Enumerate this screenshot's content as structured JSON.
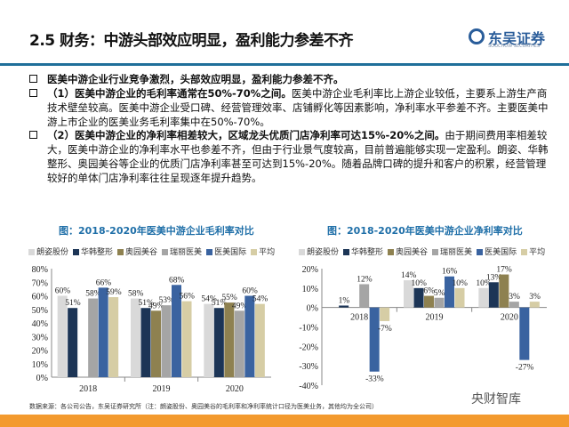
{
  "header": {
    "title": "2.5 财务：中游头部效应明显，盈利能力参差不齐",
    "logo_cn": "东吴证券",
    "logo_en": "SOOCHOW SECURITIES"
  },
  "bullets": [
    {
      "bold": "医美中游企业行业竞争激烈，头部效应明显，盈利能力参差不齐。",
      "text": ""
    },
    {
      "bold": "（1）医美中游企业的毛利率通常在50%-70%之间。",
      "text": "医美中游企业毛利率比上游企业较低，主要系上游生产商技术壁垒较高。医美中游企业受口碑、经营管理效率、店铺孵化等因素影响，净利率水平参差不齐。主要医美中游上市企业的医美业务毛利率集中在50%-70%。"
    },
    {
      "bold": "（2）医美中游企业的净利率相差较大，区域龙头优质门店净利率可达15%-20%之间。",
      "text": "由于期间费用率相差较大，医美中游企业的净利率水平也参差不齐，但由于行业景气度较高，目前普遍能够实现一定盈利。朗姿、华韩整形、奥园美谷等企业的优质门店净利率甚至可达到15%-20%。随着品牌口碑的提升和客户的积累，经营管理较好的单体门店净利率往往呈现逐年提升趋势。"
    }
  ],
  "chart_data": [
    {
      "type": "bar",
      "title": "图：2018-2020年医美中游企业毛利率对比",
      "categories": [
        "2018",
        "2019",
        "2020"
      ],
      "ylim": [
        0,
        80
      ],
      "yticks": [
        "0%",
        "10%",
        "20%",
        "30%",
        "40%",
        "50%",
        "60%",
        "70%",
        "80%"
      ],
      "series": [
        {
          "name": "朗姿股份",
          "color": "#d9d9d9",
          "values": [
            60,
            58,
            54
          ]
        },
        {
          "name": "华韩整形",
          "color": "#1c3556",
          "values": [
            51,
            51,
            51
          ]
        },
        {
          "name": "奥园美谷",
          "color": "#8e8150",
          "values": [
            null,
            49,
            55
          ]
        },
        {
          "name": "瑞丽医美",
          "color": "#a5a5a5",
          "values": [
            58,
            53,
            49
          ]
        },
        {
          "name": "医美国际",
          "color": "#3a63a0",
          "values": [
            66,
            68,
            60
          ]
        },
        {
          "name": "平均",
          "color": "#d6cda5",
          "values": [
            59,
            56,
            54
          ]
        }
      ]
    },
    {
      "type": "bar",
      "title": "图：2018-2020年医美中游企业净利率对比",
      "categories": [
        "2018",
        "2019",
        "2020"
      ],
      "ylim": [
        -40,
        20
      ],
      "yticks": [
        "-40%",
        "-30%",
        "-20%",
        "-10%",
        "0%",
        "10%",
        "20%"
      ],
      "series": [
        {
          "name": "朗姿股份",
          "color": "#d9d9d9",
          "values": [
            null,
            14,
            10
          ]
        },
        {
          "name": "华韩整形",
          "color": "#1c3556",
          "values": [
            1,
            10,
            13
          ]
        },
        {
          "name": "奥园美谷",
          "color": "#8e8150",
          "values": [
            null,
            6,
            17
          ]
        },
        {
          "name": "瑞丽医美",
          "color": "#a5a5a5",
          "values": [
            12,
            5,
            3
          ]
        },
        {
          "name": "医美国际",
          "color": "#3a63a0",
          "values": [
            -33,
            16,
            -27
          ]
        },
        {
          "name": "平均",
          "color": "#d6cda5",
          "values": [
            -7,
            10,
            3
          ]
        }
      ]
    }
  ],
  "footer": {
    "source": "数据来源：各公司公告，东吴证券研究所（注：朗姿股份、奥园美谷的毛利率和净利率统计口径为医美业务，其他均为全公司）",
    "watermark": "央财智库"
  }
}
